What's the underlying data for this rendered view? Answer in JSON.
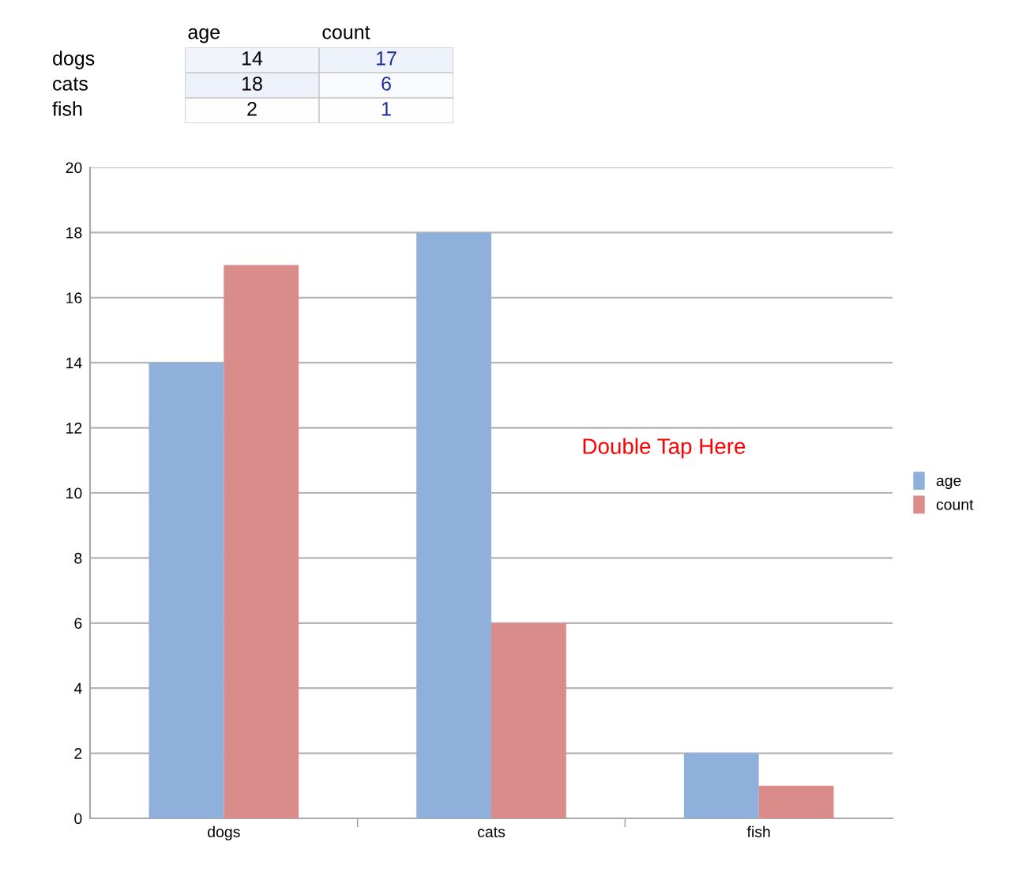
{
  "chart_data": [
    {
      "type": "heatmap",
      "categories": [
        "age",
        "count"
      ],
      "y_categories": [
        "dogs",
        "cats",
        "fish"
      ],
      "cells": [
        [
          14,
          17
        ],
        [
          18,
          6
        ],
        [
          2,
          1
        ]
      ],
      "cell_labels": [
        [
          "14",
          "17"
        ],
        [
          "18",
          "6"
        ],
        [
          "2",
          "1"
        ]
      ]
    },
    {
      "type": "bar",
      "categories": [
        "dogs",
        "cats",
        "fish"
      ],
      "series": [
        {
          "name": "age",
          "color": "#8fb0da",
          "values": [
            14,
            18,
            2
          ]
        },
        {
          "name": "count",
          "color": "#d98c8a",
          "values": [
            17,
            6,
            1
          ]
        }
      ],
      "ylim": [
        0,
        20
      ],
      "yticks": [
        0,
        2,
        4,
        6,
        8,
        10,
        12,
        14,
        16,
        18,
        20
      ],
      "grid": "y",
      "legend": "right",
      "annotations": [
        "Double Tap Here"
      ]
    }
  ]
}
